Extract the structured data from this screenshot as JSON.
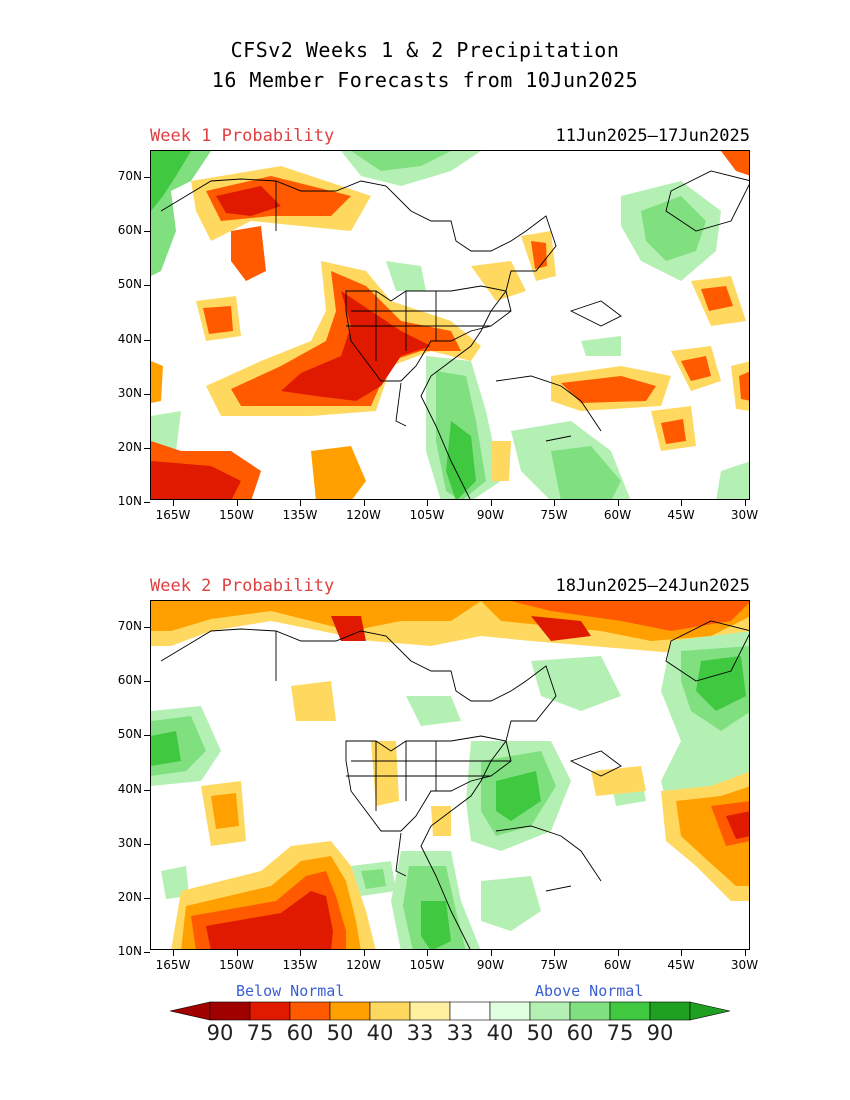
{
  "title": {
    "line1": "CFSv2 Weeks 1 & 2 Precipitation",
    "line2": "16 Member Forecasts from 10Jun2025"
  },
  "panels": [
    {
      "label": "Week 1 Probability",
      "dates": "11Jun2025—17Jun2025"
    },
    {
      "label": "Week 2 Probability",
      "dates": "18Jun2025—24Jun2025"
    }
  ],
  "axes": {
    "lat_labels": [
      "70N",
      "60N",
      "50N",
      "40N",
      "30N",
      "20N",
      "10N"
    ],
    "lon_labels": [
      "165W",
      "150W",
      "135W",
      "120W",
      "105W",
      "90W",
      "75W",
      "60W",
      "45W",
      "30W"
    ]
  },
  "legend": {
    "below_label": "Below Normal",
    "above_label": "Above Normal",
    "values": [
      "90",
      "75",
      "60",
      "50",
      "40",
      "33",
      "33",
      "40",
      "50",
      "60",
      "75",
      "90"
    ],
    "colors": [
      "#a00000",
      "#e01a00",
      "#ff5a00",
      "#ffa000",
      "#ffd860",
      "#fff0a0",
      "#ffffff",
      "#e0ffe0",
      "#b4f0b4",
      "#80e080",
      "#40c840",
      "#20a020"
    ],
    "arrow_low": "#a00000",
    "arrow_high": "#20a020"
  }
}
